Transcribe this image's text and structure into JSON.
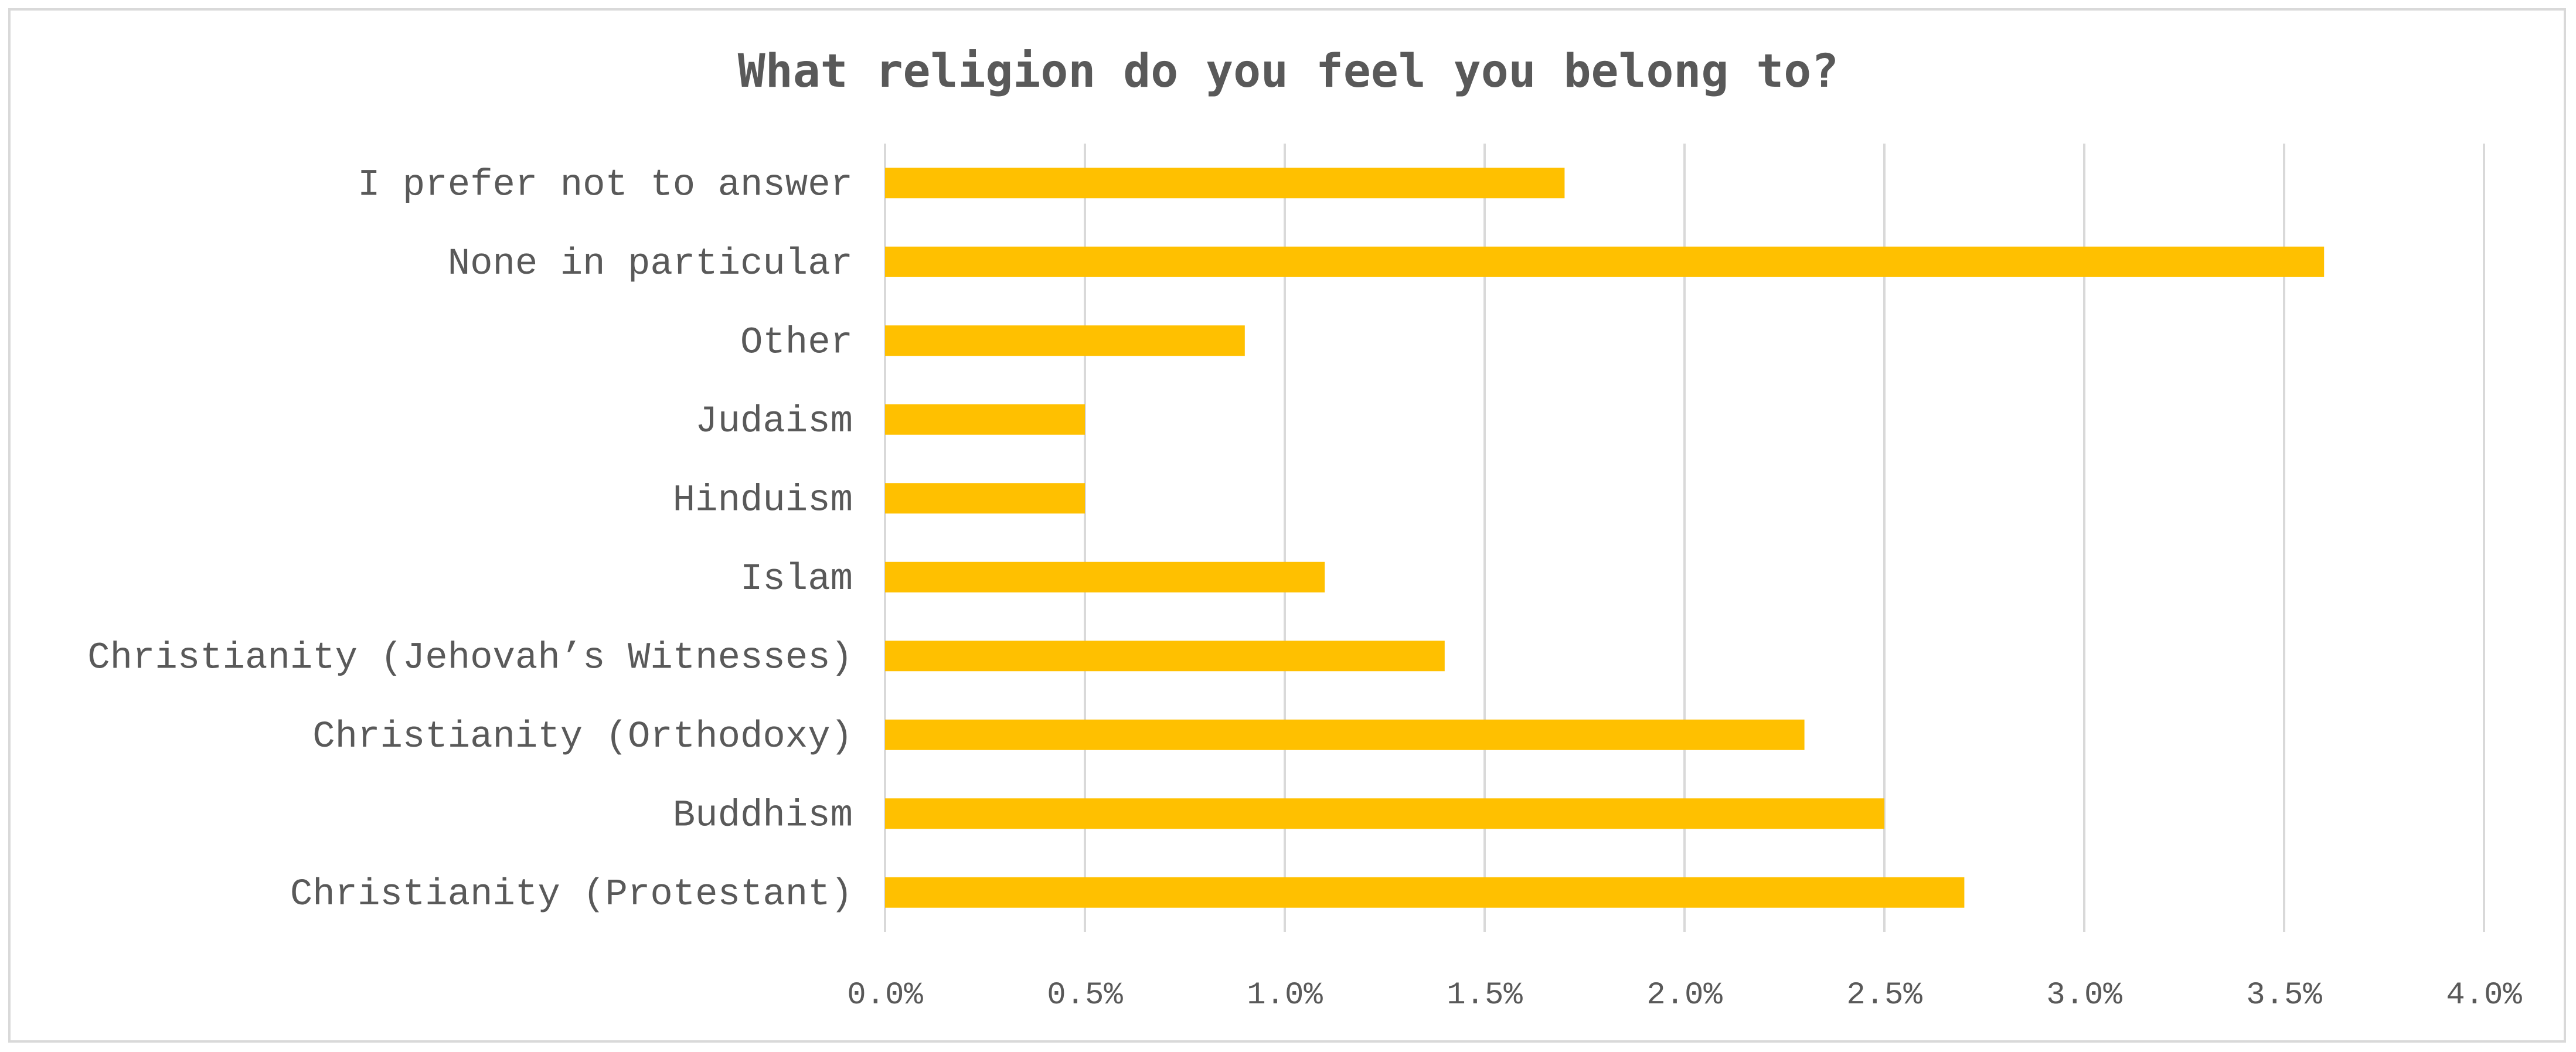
{
  "chart_data": {
    "type": "bar",
    "orientation": "horizontal",
    "title": "What religion do you feel you belong to?",
    "categories": [
      "I prefer not to answer",
      "None in particular",
      "Other",
      "Judaism",
      "Hinduism",
      "Islam",
      "Christianity (Jehovah’s Witnesses)",
      "Christianity (Orthodoxy)",
      "Buddhism",
      "Christianity (Protestant)"
    ],
    "values": [
      1.7,
      3.6,
      0.9,
      0.5,
      0.5,
      1.1,
      1.4,
      2.3,
      2.5,
      2.7
    ],
    "value_unit": "%",
    "xlim": [
      0,
      4.0
    ],
    "xticks": [
      "0.0%",
      "0.5%",
      "1.0%",
      "1.5%",
      "2.0%",
      "2.5%",
      "3.0%",
      "3.5%",
      "4.0%"
    ],
    "grid": "vertical",
    "legend": "none",
    "bar_color": "#FFC000"
  }
}
